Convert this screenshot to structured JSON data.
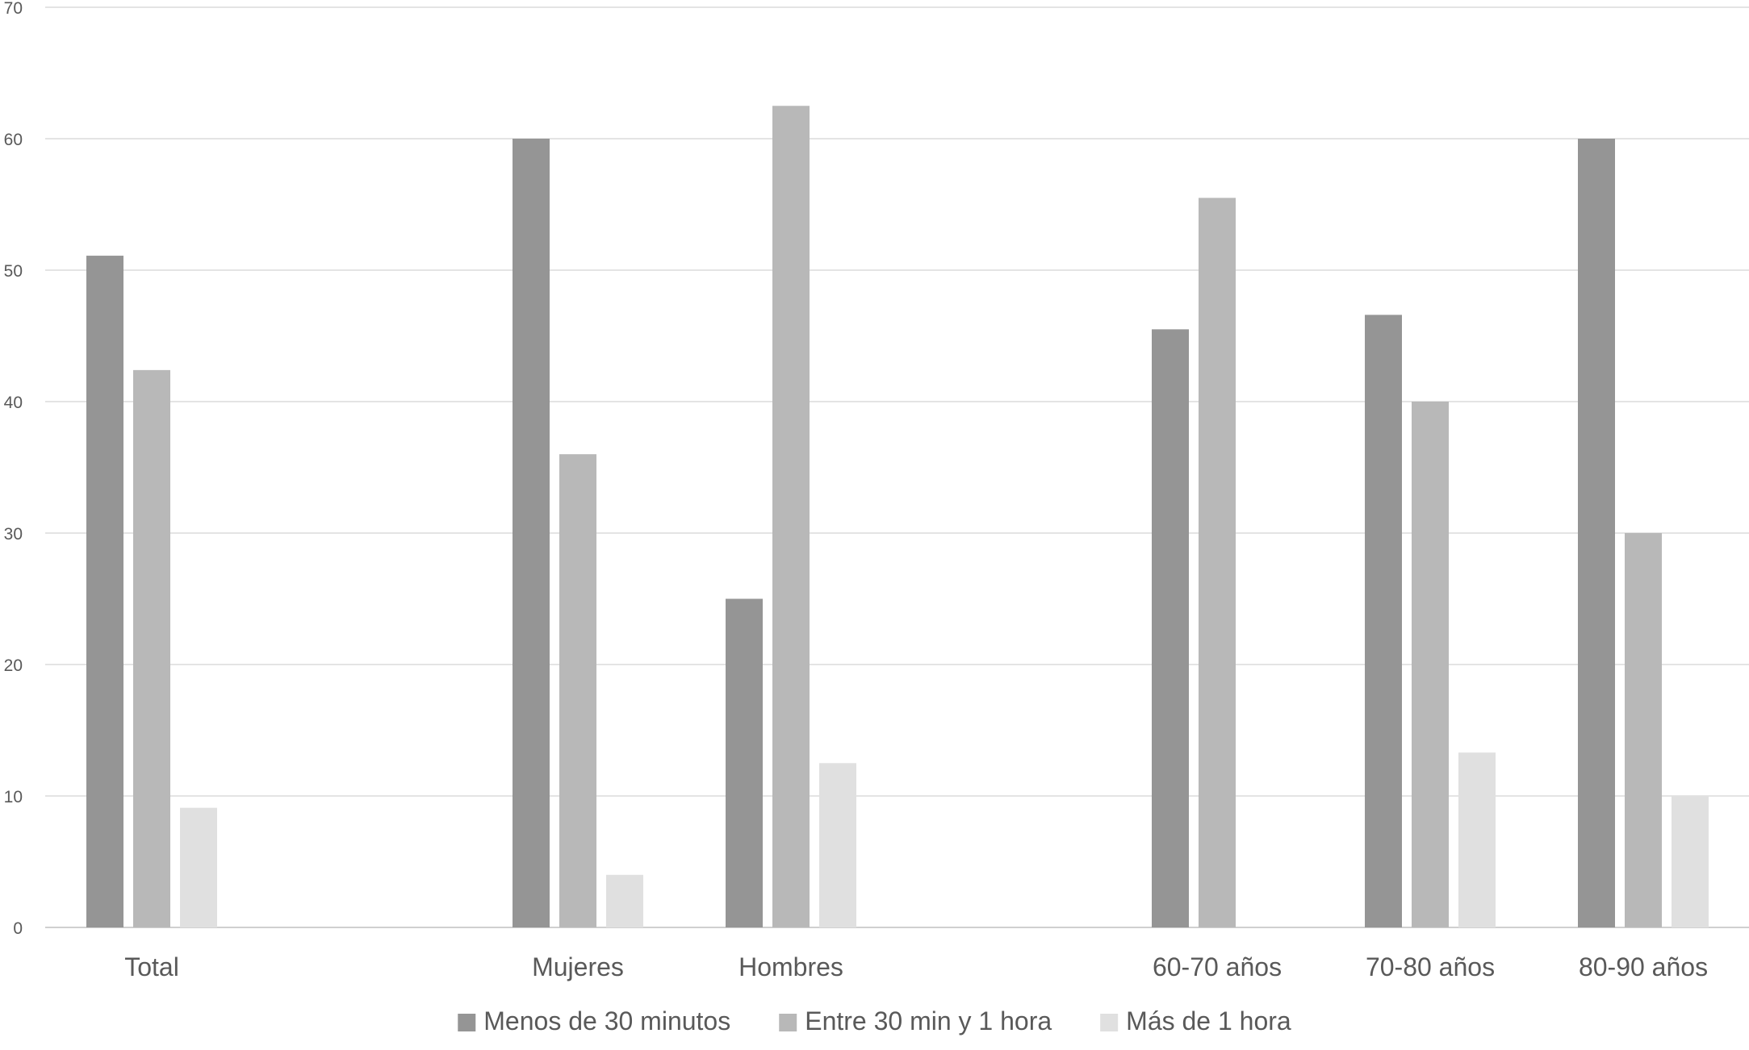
{
  "chart_data": {
    "type": "bar",
    "title": "",
    "xlabel": "",
    "ylabel": "",
    "categories": [
      "Total",
      "",
      "Mujeres",
      "Hombres",
      "",
      "60-70 años",
      "70-80 años",
      "80-90 años"
    ],
    "ylim": [
      0,
      70
    ],
    "yticks": [
      0,
      10,
      20,
      30,
      40,
      50,
      60,
      70
    ],
    "grid": true,
    "legend_position": "bottom",
    "series": [
      {
        "name": "Menos de 30 minutos",
        "color": "#959595",
        "values": [
          51.1,
          null,
          60,
          25,
          null,
          45.5,
          46.6,
          60
        ]
      },
      {
        "name": "Entre 30 min y 1 hora",
        "color": "#b8b8b8",
        "values": [
          42.4,
          null,
          36,
          62.5,
          null,
          55.5,
          40,
          30
        ]
      },
      {
        "name": "Más de 1 hora",
        "color": "#e0e0e0",
        "values": [
          9.1,
          null,
          4,
          12.5,
          null,
          null,
          13.3,
          10
        ]
      }
    ]
  }
}
